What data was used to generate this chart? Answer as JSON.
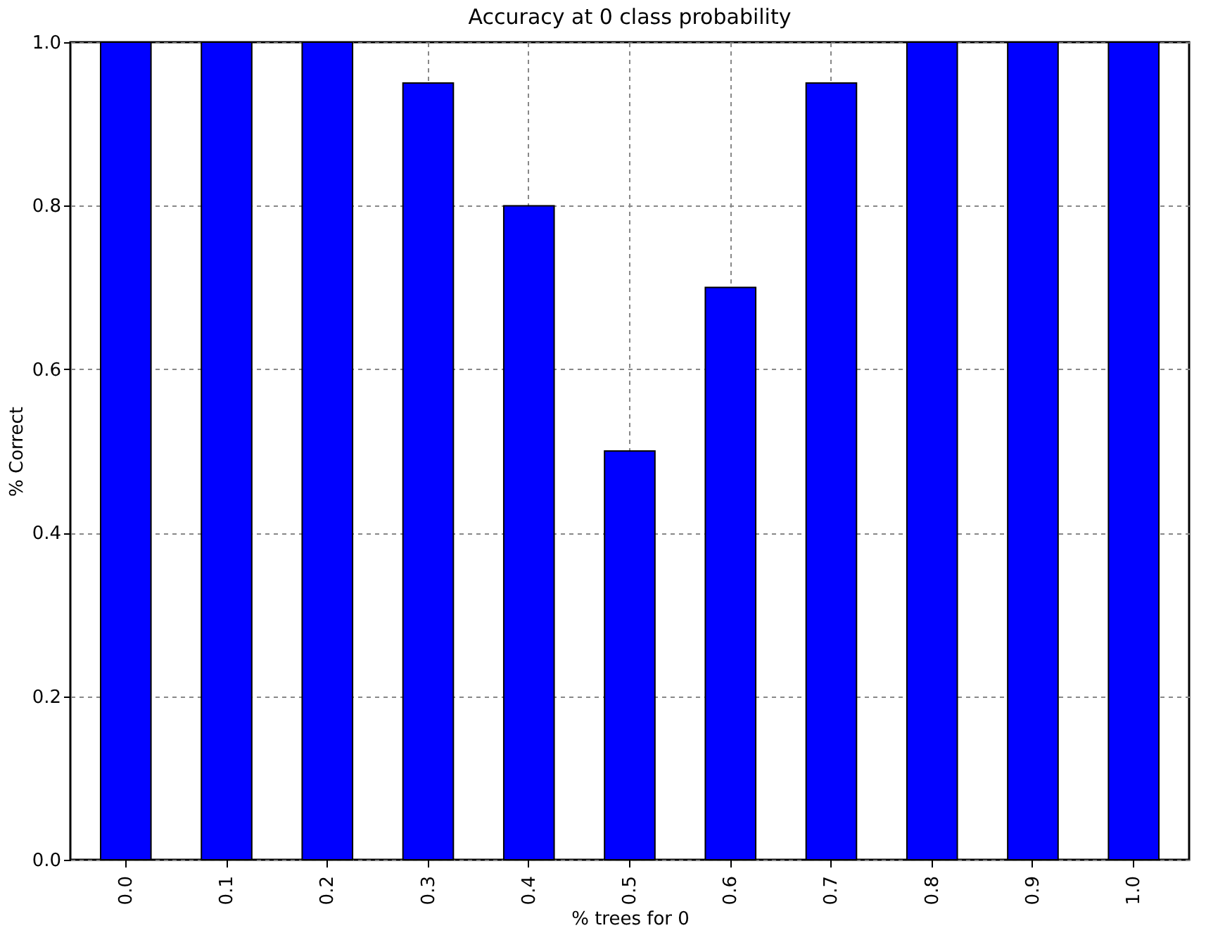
{
  "chart_data": {
    "type": "bar",
    "title": "Accuracy at 0 class probability",
    "xlabel": "% trees for 0",
    "ylabel": "% Correct",
    "categories": [
      "0.0",
      "0.1",
      "0.2",
      "0.3",
      "0.4",
      "0.5",
      "0.6",
      "0.7",
      "0.8",
      "0.9",
      "1.0"
    ],
    "values": [
      1.0,
      1.0,
      1.0,
      0.95,
      0.8,
      0.5,
      0.7,
      0.95,
      1.0,
      1.0,
      1.0
    ],
    "color": "#0000ff",
    "ylim": [
      0,
      1
    ],
    "yticks": [
      {
        "value": 0,
        "label": "0.0"
      },
      {
        "value": 0.2,
        "label": "0.2"
      },
      {
        "value": 0.4,
        "label": "0.4"
      },
      {
        "value": 0.6,
        "label": "0.6"
      },
      {
        "value": 0.8,
        "label": "0.8"
      },
      {
        "value": 1,
        "label": "1.0"
      }
    ],
    "grid": true
  }
}
